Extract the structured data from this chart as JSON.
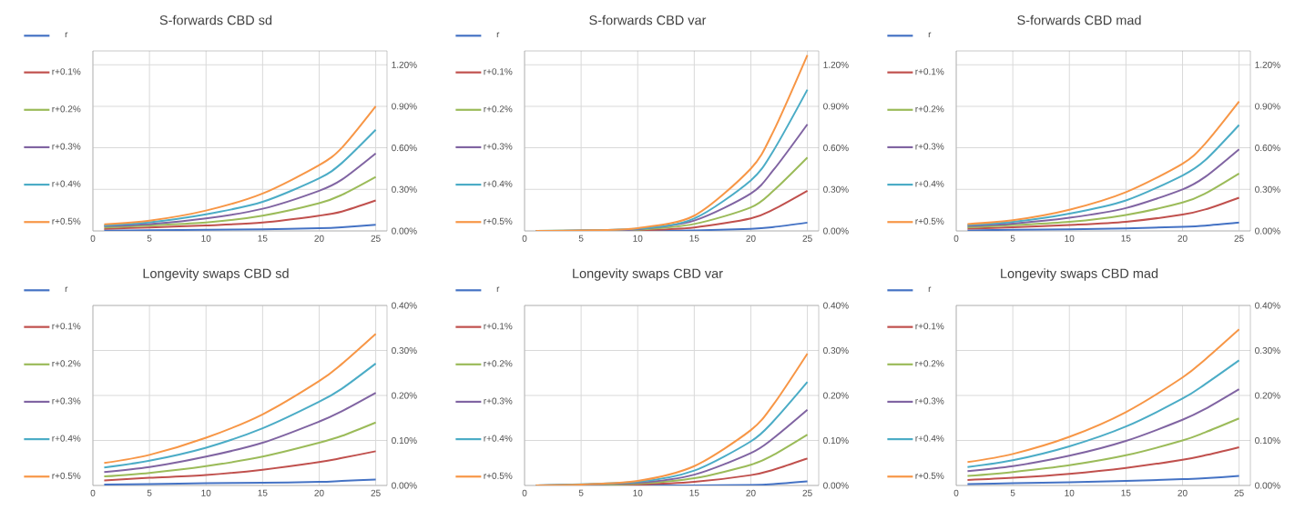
{
  "chart_data": [
    {
      "type": "line",
      "title": "S-forwards CBD sd",
      "x": [
        1,
        5,
        10,
        15,
        20,
        22,
        25
      ],
      "xlim": [
        0,
        26
      ],
      "xticks": [
        0,
        5,
        10,
        15,
        20,
        25
      ],
      "ylim": [
        0,
        1.3
      ],
      "yticks": [
        {
          "value": 0,
          "label": "0.00%"
        },
        {
          "value": 0.3,
          "label": "0.30%"
        },
        {
          "value": 0.6,
          "label": "0.60%"
        },
        {
          "value": 0.9,
          "label": "0.90%"
        },
        {
          "value": 1.2,
          "label": "1.20%"
        }
      ],
      "grid": true,
      "legend": "left",
      "series": [
        {
          "name": "r",
          "color": "#4472c4",
          "values": [
            0.003,
            0.005,
            0.008,
            0.012,
            0.02,
            0.027,
            0.045
          ]
        },
        {
          "name": "r+0.1%",
          "color": "#c0504d",
          "values": [
            0.015,
            0.025,
            0.04,
            0.06,
            0.11,
            0.14,
            0.22
          ]
        },
        {
          "name": "r+0.2%",
          "color": "#9bbb59",
          "values": [
            0.025,
            0.04,
            0.06,
            0.11,
            0.2,
            0.26,
            0.39
          ]
        },
        {
          "name": "r+0.3%",
          "color": "#8064a2",
          "values": [
            0.035,
            0.05,
            0.09,
            0.16,
            0.29,
            0.37,
            0.56
          ]
        },
        {
          "name": "r+0.4%",
          "color": "#4bacc6",
          "values": [
            0.04,
            0.062,
            0.12,
            0.21,
            0.38,
            0.49,
            0.73
          ]
        },
        {
          "name": "r+0.5%",
          "color": "#f79646",
          "values": [
            0.048,
            0.074,
            0.147,
            0.27,
            0.475,
            0.6,
            0.9
          ]
        }
      ]
    },
    {
      "type": "line",
      "title": "S-forwards CBD var",
      "x": [
        1,
        5,
        10,
        15,
        20,
        22,
        25
      ],
      "xlim": [
        0,
        26
      ],
      "xticks": [
        0,
        5,
        10,
        15,
        20,
        25
      ],
      "ylim": [
        0,
        1.3
      ],
      "yticks": [
        {
          "value": 0,
          "label": "0.00%"
        },
        {
          "value": 0.3,
          "label": "0.30%"
        },
        {
          "value": 0.6,
          "label": "0.60%"
        },
        {
          "value": 0.9,
          "label": "0.90%"
        },
        {
          "value": 1.2,
          "label": "1.20%"
        }
      ],
      "grid": true,
      "legend": "left",
      "series": [
        {
          "name": "r",
          "color": "#4472c4",
          "values": [
            0,
            0,
            0.001,
            0.004,
            0.015,
            0.028,
            0.06
          ]
        },
        {
          "name": "r+0.1%",
          "color": "#c0504d",
          "values": [
            0,
            0.001,
            0.004,
            0.025,
            0.09,
            0.155,
            0.29
          ]
        },
        {
          "name": "r+0.2%",
          "color": "#9bbb59",
          "values": [
            0,
            0.002,
            0.008,
            0.05,
            0.17,
            0.29,
            0.53
          ]
        },
        {
          "name": "r+0.3%",
          "color": "#8064a2",
          "values": [
            0,
            0.002,
            0.012,
            0.075,
            0.27,
            0.44,
            0.77
          ]
        },
        {
          "name": "r+0.4%",
          "color": "#4bacc6",
          "values": [
            0,
            null,
            0.016,
            0.09,
            0.365,
            0.58,
            1.02
          ]
        },
        {
          "name": "r+0.5%",
          "color": "#f79646",
          "values": [
            0,
            0.003,
            0.02,
            0.11,
            0.45,
            0.72,
            1.27
          ]
        }
      ]
    },
    {
      "type": "line",
      "title": "S-forwards CBD mad",
      "x": [
        1,
        5,
        10,
        15,
        20,
        22,
        25
      ],
      "xlim": [
        0,
        26
      ],
      "xticks": [
        0,
        5,
        10,
        15,
        20,
        25
      ],
      "ylim": [
        0,
        1.3
      ],
      "yticks": [
        {
          "value": 0,
          "label": "0.00%"
        },
        {
          "value": 0.3,
          "label": "0.30%"
        },
        {
          "value": 0.6,
          "label": "0.60%"
        },
        {
          "value": 0.9,
          "label": "0.90%"
        },
        {
          "value": 1.2,
          "label": "1.20%"
        }
      ],
      "grid": true,
      "legend": "left",
      "series": [
        {
          "name": "r",
          "color": "#4472c4",
          "values": [
            0.004,
            0.008,
            0.012,
            0.018,
            0.03,
            0.038,
            0.06
          ]
        },
        {
          "name": "r+0.1%",
          "color": "#c0504d",
          "values": [
            0.016,
            0.027,
            0.043,
            0.066,
            0.118,
            0.155,
            0.24
          ]
        },
        {
          "name": "r+0.2%",
          "color": "#9bbb59",
          "values": [
            0.026,
            0.042,
            0.065,
            0.115,
            0.205,
            0.27,
            0.415
          ]
        },
        {
          "name": "r+0.3%",
          "color": "#8064a2",
          "values": [
            0.036,
            0.053,
            0.095,
            0.165,
            0.3,
            0.39,
            0.59
          ]
        },
        {
          "name": "r+0.4%",
          "color": "#4bacc6",
          "values": [
            0.042,
            0.065,
            0.125,
            0.22,
            0.4,
            0.51,
            0.765
          ]
        },
        {
          "name": "r+0.5%",
          "color": "#f79646",
          "values": [
            0.05,
            0.077,
            0.153,
            0.28,
            0.485,
            0.63,
            0.935
          ]
        }
      ]
    },
    {
      "type": "line",
      "title": "Longevity swaps CBD sd",
      "x": [
        1,
        5,
        10,
        15,
        20,
        22,
        25
      ],
      "xlim": [
        0,
        26
      ],
      "xticks": [
        0,
        5,
        10,
        15,
        20,
        25
      ],
      "ylim": [
        0,
        0.4
      ],
      "yticks": [
        {
          "value": 0,
          "label": "0.00%"
        },
        {
          "value": 0.1,
          "label": "0.10%"
        },
        {
          "value": 0.2,
          "label": "0.20%"
        },
        {
          "value": 0.3,
          "label": "0.30%"
        },
        {
          "value": 0.4,
          "label": "0.40%"
        }
      ],
      "grid": true,
      "legend": "left",
      "series": [
        {
          "name": "r",
          "color": "#4472c4",
          "values": [
            0.002,
            0.003,
            0.005,
            0.006,
            0.008,
            0.01,
            0.013
          ]
        },
        {
          "name": "r+0.1%",
          "color": "#c0504d",
          "values": [
            0.011,
            0.017,
            0.023,
            0.035,
            0.052,
            0.061,
            0.076
          ]
        },
        {
          "name": "r+0.2%",
          "color": "#9bbb59",
          "values": [
            0.02,
            0.028,
            0.043,
            0.064,
            0.095,
            0.11,
            0.14
          ]
        },
        {
          "name": "r+0.3%",
          "color": "#8064a2",
          "values": [
            0.03,
            0.041,
            0.064,
            0.095,
            0.142,
            0.165,
            0.206
          ]
        },
        {
          "name": "r+0.4%",
          "color": "#4bacc6",
          "values": [
            0.04,
            0.055,
            0.084,
            0.127,
            0.186,
            0.215,
            0.271
          ]
        },
        {
          "name": "r+0.5%",
          "color": "#f79646",
          "values": [
            0.05,
            0.068,
            0.106,
            0.158,
            0.232,
            0.27,
            0.337
          ]
        }
      ]
    },
    {
      "type": "line",
      "title": "Longevity swaps CBD var",
      "x": [
        1,
        5,
        10,
        15,
        20,
        22,
        25
      ],
      "xlim": [
        0,
        26
      ],
      "xticks": [
        0,
        5,
        10,
        15,
        20,
        25
      ],
      "ylim": [
        0,
        0.4
      ],
      "yticks": [
        {
          "value": 0,
          "label": "0.00%"
        },
        {
          "value": 0.1,
          "label": "0.10%"
        },
        {
          "value": 0.2,
          "label": "0.20%"
        },
        {
          "value": 0.3,
          "label": "0.30%"
        },
        {
          "value": 0.4,
          "label": "0.40%"
        }
      ],
      "grid": true,
      "legend": "left",
      "series": [
        {
          "name": "r",
          "color": "#4472c4",
          "values": [
            0,
            0,
            0,
            0,
            0.001,
            0.003,
            0.009
          ]
        },
        {
          "name": "r+0.1%",
          "color": "#c0504d",
          "values": [
            0,
            0.001,
            0.002,
            0.008,
            0.023,
            0.035,
            0.06
          ]
        },
        {
          "name": "r+0.2%",
          "color": "#9bbb59",
          "values": [
            0,
            0.001,
            0.004,
            0.016,
            0.046,
            0.068,
            0.113
          ]
        },
        {
          "name": "r+0.3%",
          "color": "#8064a2",
          "values": [
            0,
            null,
            0.006,
            0.024,
            0.072,
            0.105,
            0.168
          ]
        },
        {
          "name": "r+0.4%",
          "color": "#4bacc6",
          "values": [
            0,
            null,
            0.008,
            0.033,
            0.098,
            0.143,
            0.23
          ]
        },
        {
          "name": "r+0.5%",
          "color": "#f79646",
          "values": [
            0,
            0.002,
            0.01,
            0.043,
            0.123,
            0.18,
            0.293
          ]
        }
      ]
    },
    {
      "type": "line",
      "title": "Longevity swaps CBD mad",
      "x": [
        1,
        5,
        10,
        15,
        20,
        22,
        25
      ],
      "xlim": [
        0,
        26
      ],
      "xticks": [
        0,
        5,
        10,
        15,
        20,
        25
      ],
      "ylim": [
        0,
        0.4
      ],
      "yticks": [
        {
          "value": 0,
          "label": "0.00%"
        },
        {
          "value": 0.1,
          "label": "0.10%"
        },
        {
          "value": 0.2,
          "label": "0.20%"
        },
        {
          "value": 0.3,
          "label": "0.30%"
        },
        {
          "value": 0.4,
          "label": "0.40%"
        }
      ],
      "grid": true,
      "legend": "left",
      "series": [
        {
          "name": "r",
          "color": "#4472c4",
          "values": [
            0.003,
            0.005,
            0.007,
            0.01,
            0.014,
            0.016,
            0.021
          ]
        },
        {
          "name": "r+0.1%",
          "color": "#c0504d",
          "values": [
            0.012,
            0.017,
            0.026,
            0.039,
            0.057,
            0.067,
            0.085
          ]
        },
        {
          "name": "r+0.2%",
          "color": "#9bbb59",
          "values": [
            0.021,
            0.03,
            0.045,
            0.067,
            0.1,
            0.118,
            0.149
          ]
        },
        {
          "name": "r+0.3%",
          "color": "#8064a2",
          "values": [
            0.032,
            0.043,
            0.066,
            0.099,
            0.146,
            0.17,
            0.214
          ]
        },
        {
          "name": "r+0.4%",
          "color": "#4bacc6",
          "values": [
            0.041,
            0.056,
            0.087,
            0.131,
            0.193,
            0.225,
            0.278
          ]
        },
        {
          "name": "r+0.5%",
          "color": "#f79646",
          "values": [
            0.052,
            0.07,
            0.108,
            0.163,
            0.24,
            0.28,
            0.347
          ]
        }
      ]
    }
  ]
}
